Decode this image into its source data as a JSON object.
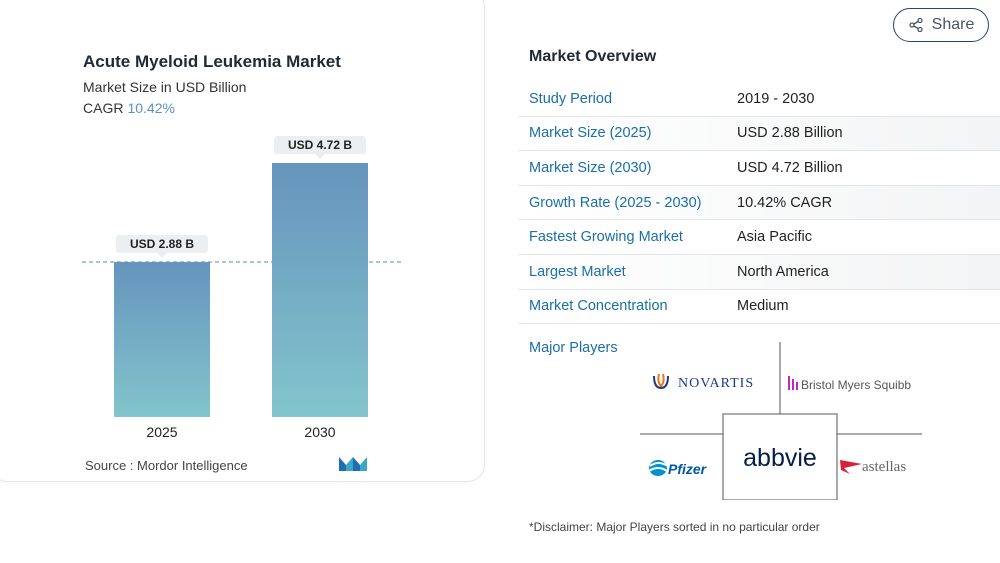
{
  "chart_card": {
    "title": "Acute Myeloid Leukemia Market",
    "subtitle": "Market Size in USD Billion",
    "cagr_label": "CAGR",
    "cagr_value": "10.42%",
    "source": "Source :  Mordor Intelligence"
  },
  "chart_data": {
    "type": "bar",
    "categories": [
      "2025",
      "2030"
    ],
    "values": [
      2.88,
      4.72
    ],
    "data_labels": [
      "USD 2.88 B",
      "USD 4.72 B"
    ],
    "title": "Acute Myeloid Leukemia Market",
    "subtitle": "Market Size in USD Billion",
    "xlabel": "",
    "ylabel": "",
    "ylim": [
      0,
      4.72
    ],
    "reference_line": 2.88,
    "grid": false,
    "colors": {
      "bar_top": "#6694bd",
      "bar_bottom": "#82c5cc",
      "dashed_line": "#5a88b0",
      "label_bg": "#eceff1"
    }
  },
  "share": {
    "label": "Share",
    "icon": "share-icon"
  },
  "overview": {
    "title": "Market Overview",
    "rows": [
      {
        "label": "Study Period",
        "value": "2019 - 2030"
      },
      {
        "label": "Market Size (2025)",
        "value": "USD 2.88 Billion"
      },
      {
        "label": "Market Size (2030)",
        "value": "USD 4.72 Billion"
      },
      {
        "label": "Growth Rate (2025 - 2030)",
        "value": "10.42% CAGR"
      },
      {
        "label": "Fastest Growing Market",
        "value": "Asia Pacific"
      },
      {
        "label": "Largest Market",
        "value": "North America"
      },
      {
        "label": "Market Concentration",
        "value": "Medium"
      }
    ],
    "players_label": "Major Players",
    "players": [
      "NOVARTIS",
      "Bristol Myers Squibb",
      "Pfizer",
      "abbvie",
      "astellas"
    ],
    "disclaimer": "*Disclaimer: Major Players sorted in no particular order"
  }
}
